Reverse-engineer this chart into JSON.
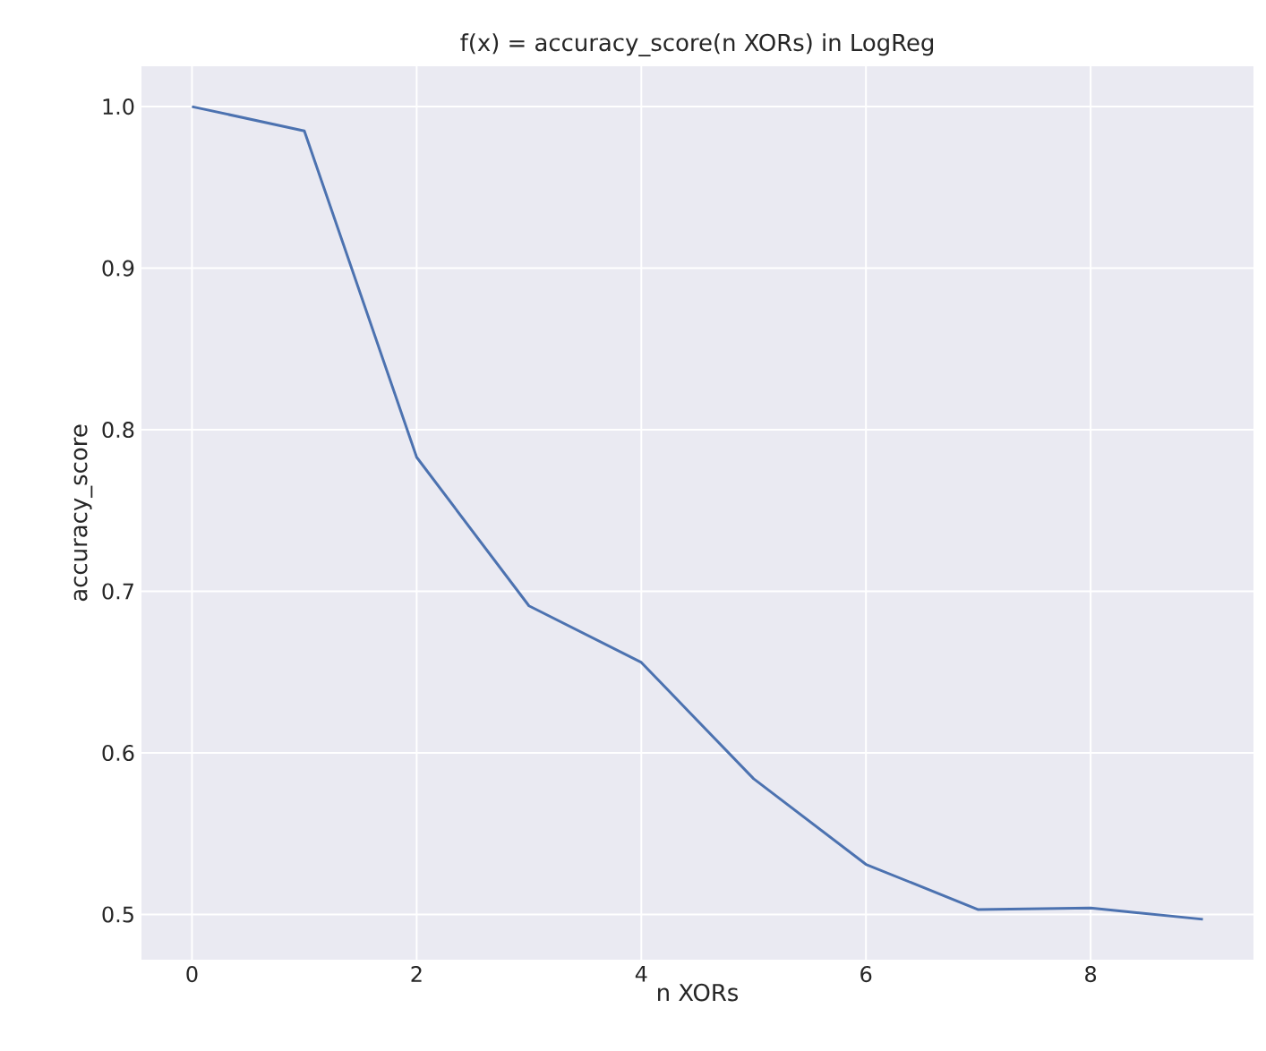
{
  "chart_data": {
    "type": "line",
    "title": "f(x) = accuracy_score(n XORs) in LogReg",
    "xlabel": "n XORs",
    "ylabel": "accuracy_score",
    "x": [
      0,
      1,
      2,
      3,
      4,
      5,
      6,
      7,
      8,
      9
    ],
    "series": [
      {
        "color": "#4c72b0",
        "values": [
          1.0,
          0.985,
          0.783,
          0.691,
          0.656,
          0.584,
          0.531,
          0.503,
          0.504,
          0.497
        ]
      }
    ],
    "xlim": [
      -0.45,
      9.45
    ],
    "ylim": [
      0.472,
      1.025
    ],
    "xticks": [
      0,
      2,
      4,
      6,
      8
    ],
    "yticks": [
      {
        "value": 0.5,
        "label": "0.5"
      },
      {
        "value": 0.6,
        "label": "0.6"
      },
      {
        "value": 0.7,
        "label": "0.7"
      },
      {
        "value": 0.8,
        "label": "0.8"
      },
      {
        "value": 0.9,
        "label": "0.9"
      },
      {
        "value": 1.0,
        "label": "1.0"
      }
    ],
    "grid": true,
    "marker": "none",
    "line_style": "solid"
  }
}
